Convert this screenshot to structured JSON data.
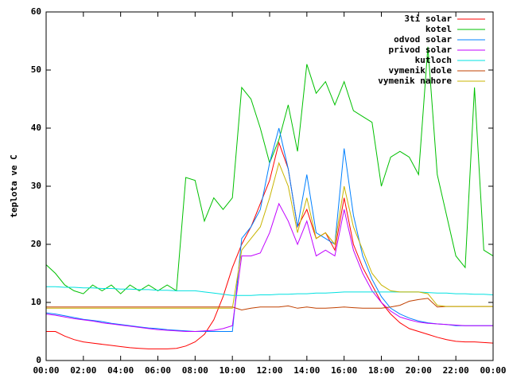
{
  "chart_data": {
    "type": "line",
    "ylabel": "teplota ve C",
    "x": [
      0,
      0.5,
      1,
      1.5,
      2,
      2.5,
      3,
      3.5,
      4,
      4.5,
      5,
      5.5,
      6,
      6.5,
      7,
      7.5,
      8,
      8.5,
      9,
      9.5,
      10,
      10.5,
      11,
      11.5,
      12,
      12.5,
      13,
      13.5,
      14,
      14.5,
      15,
      15.5,
      16,
      16.5,
      17,
      17.5,
      18,
      18.5,
      19,
      19.5,
      20,
      20.5,
      21,
      21.5,
      22,
      22.5,
      23,
      23.5,
      24
    ],
    "xlim": [
      0,
      24
    ],
    "xticks": [
      {
        "value": 0,
        "label": "00:00"
      },
      {
        "value": 2,
        "label": "02:00"
      },
      {
        "value": 4,
        "label": "04:00"
      },
      {
        "value": 6,
        "label": "06:00"
      },
      {
        "value": 8,
        "label": "08:00"
      },
      {
        "value": 10,
        "label": "10:00"
      },
      {
        "value": 12,
        "label": "12:00"
      },
      {
        "value": 14,
        "label": "14:00"
      },
      {
        "value": 16,
        "label": "16:00"
      },
      {
        "value": 18,
        "label": "18:00"
      },
      {
        "value": 20,
        "label": "20:00"
      },
      {
        "value": 22,
        "label": "22:00"
      },
      {
        "value": 24,
        "label": "00:00"
      }
    ],
    "ylim": [
      0,
      60
    ],
    "yticks": [
      0,
      10,
      20,
      30,
      40,
      50,
      60
    ],
    "legend": "top-right",
    "series": [
      {
        "name": "3ti solar",
        "color": "#ff0000",
        "values": [
          5,
          5,
          4.2,
          3.6,
          3.2,
          3,
          2.8,
          2.6,
          2.4,
          2.2,
          2.1,
          2,
          2,
          2,
          2.1,
          2.5,
          3.2,
          4.5,
          7,
          11,
          16,
          20,
          23,
          27,
          31,
          37.5,
          33,
          23,
          26,
          21,
          22,
          19,
          28,
          20,
          16,
          13,
          10,
          8,
          6.5,
          5.5,
          5,
          4.5,
          4,
          3.6,
          3.3,
          3.2,
          3.2,
          3.1,
          3
        ]
      },
      {
        "name": "kotel",
        "color": "#00c000",
        "values": [
          16.5,
          15,
          13,
          12,
          11.5,
          13,
          12,
          13,
          11.5,
          13,
          12,
          13,
          12,
          13,
          12,
          31.5,
          31,
          24,
          28,
          26,
          28,
          47,
          45,
          40,
          34,
          38,
          44,
          36,
          51,
          46,
          48,
          44,
          48,
          43,
          42,
          41,
          30,
          35,
          36,
          35,
          32,
          54,
          32,
          25,
          18,
          16,
          47,
          19,
          18
        ]
      },
      {
        "name": "odvod solar",
        "color": "#0080ff",
        "values": [
          8.2,
          8,
          7.7,
          7.4,
          7.1,
          6.9,
          6.7,
          6.4,
          6.2,
          6,
          5.8,
          5.6,
          5.5,
          5.3,
          5.2,
          5.1,
          5,
          5,
          5,
          5,
          5,
          21,
          23,
          26,
          34,
          40,
          33,
          23,
          32,
          22,
          21,
          20,
          36.5,
          25,
          18,
          14,
          11,
          9,
          8,
          7.3,
          6.8,
          6.5,
          6.3,
          6.2,
          6,
          6,
          6,
          6,
          6
        ]
      },
      {
        "name": "privod solar",
        "color": "#c000ff",
        "values": [
          8,
          7.8,
          7.5,
          7.2,
          7,
          6.8,
          6.5,
          6.3,
          6.1,
          5.9,
          5.7,
          5.5,
          5.3,
          5.2,
          5.1,
          5,
          5,
          5.1,
          5.2,
          5.5,
          6,
          18,
          18,
          18.5,
          22,
          27,
          24,
          20,
          24,
          18,
          19,
          18,
          26,
          19,
          15,
          12,
          10,
          8.5,
          7.5,
          7,
          6.6,
          6.4,
          6.3,
          6.2,
          6.1,
          6,
          6,
          6,
          6
        ]
      },
      {
        "name": "kutloch",
        "color": "#00e0e0",
        "values": [
          12.7,
          12.7,
          12.6,
          12.6,
          12.5,
          12.5,
          12.4,
          12.4,
          12.3,
          12.3,
          12.2,
          12.2,
          12.1,
          12.1,
          12,
          12,
          12,
          11.8,
          11.6,
          11.4,
          11.2,
          11.2,
          11.2,
          11.3,
          11.3,
          11.4,
          11.4,
          11.5,
          11.5,
          11.6,
          11.6,
          11.7,
          11.8,
          11.8,
          11.8,
          11.8,
          11.8,
          11.8,
          11.8,
          11.8,
          11.8,
          11.7,
          11.6,
          11.6,
          11.5,
          11.5,
          11.4,
          11.4,
          11.3
        ]
      },
      {
        "name": "vymenik dole",
        "color": "#c04000",
        "values": [
          9.2,
          9.2,
          9.2,
          9.2,
          9.2,
          9.2,
          9.2,
          9.2,
          9.2,
          9.2,
          9.2,
          9.2,
          9.2,
          9.2,
          9.2,
          9.2,
          9.2,
          9.2,
          9.2,
          9.2,
          9.2,
          8.7,
          9,
          9.2,
          9.2,
          9.2,
          9.4,
          9,
          9.2,
          9,
          9,
          9.1,
          9.2,
          9.1,
          9,
          9,
          9,
          9.2,
          9.5,
          10.2,
          10.5,
          10.7,
          9.2,
          9.3,
          9.3,
          9.3,
          9.3,
          9.3,
          9.3
        ]
      },
      {
        "name": "vymenik nahore",
        "color": "#c8b400",
        "values": [
          9,
          9,
          9,
          9,
          9,
          9,
          9,
          9,
          9,
          9,
          9,
          9,
          9,
          9,
          9,
          9,
          9,
          9,
          9,
          9,
          9,
          19,
          21,
          23,
          28,
          34,
          30,
          22,
          28,
          21,
          22,
          20,
          30,
          23,
          19,
          15,
          13,
          12,
          11.8,
          11.8,
          11.8,
          11.5,
          9.5,
          9.3,
          9.3,
          9.3,
          9.3,
          9.3,
          9.3
        ]
      }
    ]
  }
}
